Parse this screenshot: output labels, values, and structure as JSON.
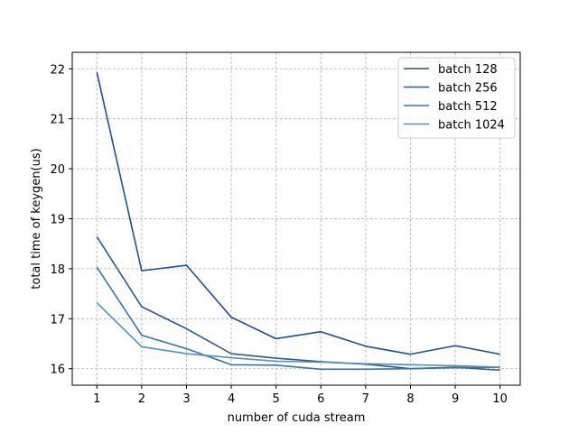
{
  "chart_data": {
    "type": "line",
    "title": "",
    "xlabel": "number of cuda stream",
    "ylabel": "total time of keygen(us)",
    "x": [
      1,
      2,
      3,
      4,
      5,
      6,
      7,
      8,
      9,
      10
    ],
    "xticks": [
      1,
      2,
      3,
      4,
      5,
      6,
      7,
      8,
      9,
      10
    ],
    "yticks": [
      16,
      17,
      18,
      19,
      20,
      21,
      22
    ],
    "xlim": [
      0.45,
      10.45
    ],
    "ylim": [
      15.67,
      22.33
    ],
    "grid": true,
    "grid_style": "dashed",
    "legend_position": "top-right",
    "series": [
      {
        "name": "batch 128",
        "color": "#1f4e99",
        "values": [
          21.93,
          17.96,
          18.07,
          17.03,
          16.6,
          16.74,
          16.45,
          16.29,
          16.46,
          16.29
        ]
      },
      {
        "name": "batch 256",
        "color": "#2c5a8c",
        "values": [
          18.64,
          17.24,
          16.8,
          16.3,
          16.21,
          16.14,
          16.09,
          16.0,
          16.03,
          15.97
        ]
      },
      {
        "name": "batch 512",
        "color": "#3474b5",
        "values": [
          18.03,
          16.67,
          16.4,
          16.08,
          16.07,
          15.99,
          15.99,
          16.0,
          16.02,
          16.03
        ]
      },
      {
        "name": "batch 1024",
        "color": "#5190c8",
        "values": [
          17.32,
          16.44,
          16.3,
          16.22,
          16.15,
          16.13,
          16.1,
          16.08,
          16.06,
          16.03
        ]
      }
    ]
  }
}
